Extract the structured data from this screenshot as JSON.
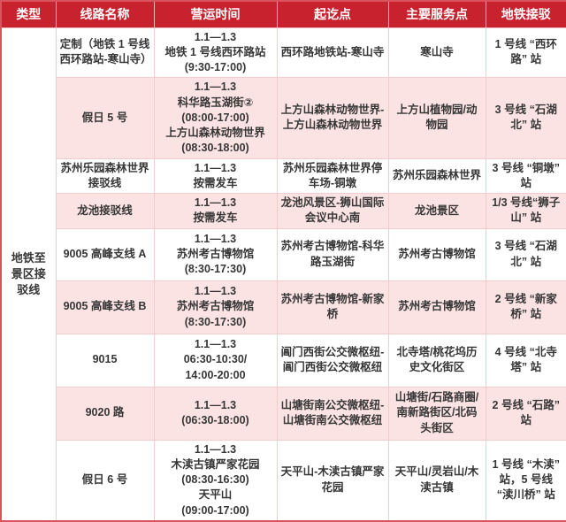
{
  "colors": {
    "header_bg": "#C7222E",
    "header_text": "#FFFFFF",
    "row_bg": "#FFFFFF",
    "row_alt_bg": "#FBE3E3",
    "grid_line": "#F6CBCE",
    "outer_border": "#D9545C",
    "text": "#363636"
  },
  "table": {
    "headers": [
      "类型",
      "线路名称",
      "营运时间",
      "起讫点",
      "主要服务点",
      "地铁接驳"
    ],
    "type_label_lines": [
      "地铁至",
      "景区接",
      "驳线"
    ],
    "rows": [
      {
        "name": "定制（地铁 1 号线西环路站-寒山寺）",
        "time_lines": [
          "1.1—1.3",
          "地铁 1 号线西环路站",
          "(9:30-17:00)"
        ],
        "route": "西环路地铁站-寒山寺",
        "service": "寒山寺",
        "metro": "1 号线 “西环路” 站"
      },
      {
        "name": "假日 5 号",
        "time_lines": [
          "1.1—1.3",
          "科华路玉湖街②",
          "(08:00-17:00)",
          "上方山森林动物世界",
          "(08:30-18:00)"
        ],
        "route": "上方山森林动物世界-上方山森林动物世界",
        "service": "上方山植物园/动物园",
        "metro": "3 号线 “石湖北” 站"
      },
      {
        "name": "苏州乐园森林世界接驳线",
        "time_lines": [
          "1.1—1.3",
          "按需发车"
        ],
        "route": "苏州乐园森林世界停车场-铜墩",
        "service": "苏州乐园森林世界",
        "metro": "3 号线 “铜墩” 站"
      },
      {
        "name": "龙池接驳线",
        "time_lines": [
          "1.1—1.3",
          "按需发车"
        ],
        "route": "龙池风景区-狮山国际会议中心南",
        "service": "龙池景区",
        "metro": "1/3 号线“狮子山” 站"
      },
      {
        "name": "9005 高峰支线 A",
        "time_lines": [
          "1.1—1.3",
          "苏州考古博物馆",
          "(8:30-17:30)"
        ],
        "route": "苏州考古博物馆-科华路玉湖街",
        "service": "苏州考古博物馆",
        "metro": "3 号线 “石湖北” 站"
      },
      {
        "name": "9005 高峰支线 B",
        "time_lines": [
          "1.1—1.3",
          "苏州考古博物馆",
          "(8:30-17:30)"
        ],
        "route": "苏州考古博物馆-新家桥",
        "service": "苏州考古博物馆",
        "metro": "2 号线 “新家桥” 站"
      },
      {
        "name": "9015",
        "time_lines": [
          "1.1—1.3",
          "06:30-10:30/",
          "14:00-20:00"
        ],
        "route": "阊门西街公交微枢纽-阊门西街公交微枢纽",
        "service": "北寺塔/桃花坞历史文化街区",
        "metro": "4 号线 “北寺塔” 站"
      },
      {
        "name": "9020 路",
        "time_lines": [
          "1.1—1.3",
          "(06:30-18:00)"
        ],
        "route": "山塘街南公交微枢纽-山塘街南公交微枢纽",
        "service": "山塘街/石路商圈/南新路街区/北码头街区",
        "metro": "2 号线 “石路” 站"
      },
      {
        "name": "假日 6 号",
        "time_lines": [
          "1.1—1.3",
          "木渎古镇严家花园",
          "(08:30-16:30)",
          "天平山",
          "(09:00-17:00)"
        ],
        "route": "天平山-木渎古镇严家花园",
        "service": "天平山/灵岩山/木渎古镇",
        "metro": "1 号线 “木渎” 站，5 号线 “渎川桥” 站"
      }
    ]
  }
}
